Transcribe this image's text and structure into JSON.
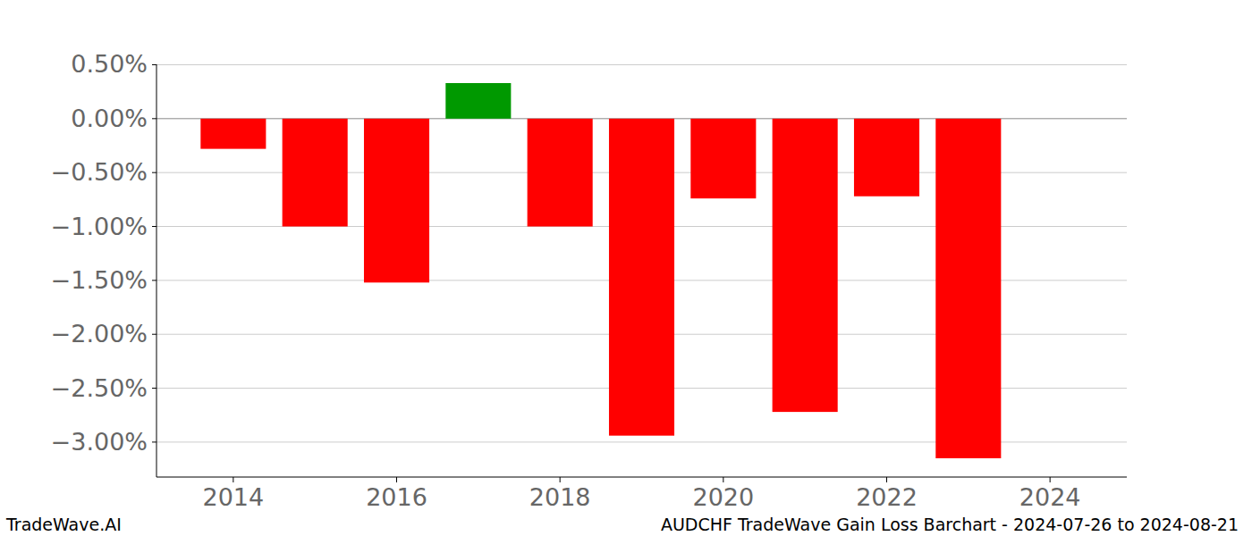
{
  "chart_data": {
    "type": "bar",
    "title": "AUDCHF TradeWave Gain Loss Barchart - 2024-07-26 to 2024-08-21",
    "annotations": [
      "TradeWave.AI"
    ],
    "x": [
      2014,
      2015,
      2016,
      2017,
      2018,
      2019,
      2020,
      2021,
      2022,
      2023
    ],
    "values": [
      -0.28,
      -1.0,
      -1.52,
      0.33,
      -1.0,
      -2.94,
      -0.74,
      -2.72,
      -0.72,
      -3.15
    ],
    "colors": [
      "#ff0000",
      "#ff0000",
      "#ff0000",
      "#009900",
      "#ff0000",
      "#ff0000",
      "#ff0000",
      "#ff0000",
      "#ff0000",
      "#ff0000"
    ],
    "xlim": [
      2013.06,
      2024.94
    ],
    "xticks": [
      2014,
      2016,
      2018,
      2020,
      2022,
      2024
    ],
    "ylim": [
      -3.324,
      0.504
    ],
    "yticks": [
      {
        "value": 0.5,
        "label": "0.50%"
      },
      {
        "value": 0.0,
        "label": "0.00%"
      },
      {
        "value": -0.5,
        "label": "−0.50%"
      },
      {
        "value": -1.0,
        "label": "−1.00%"
      },
      {
        "value": -1.5,
        "label": "−1.50%"
      },
      {
        "value": -2.0,
        "label": "−2.00%"
      },
      {
        "value": -2.5,
        "label": "−2.50%"
      },
      {
        "value": -3.0,
        "label": "−3.00%"
      }
    ],
    "grid": true
  }
}
